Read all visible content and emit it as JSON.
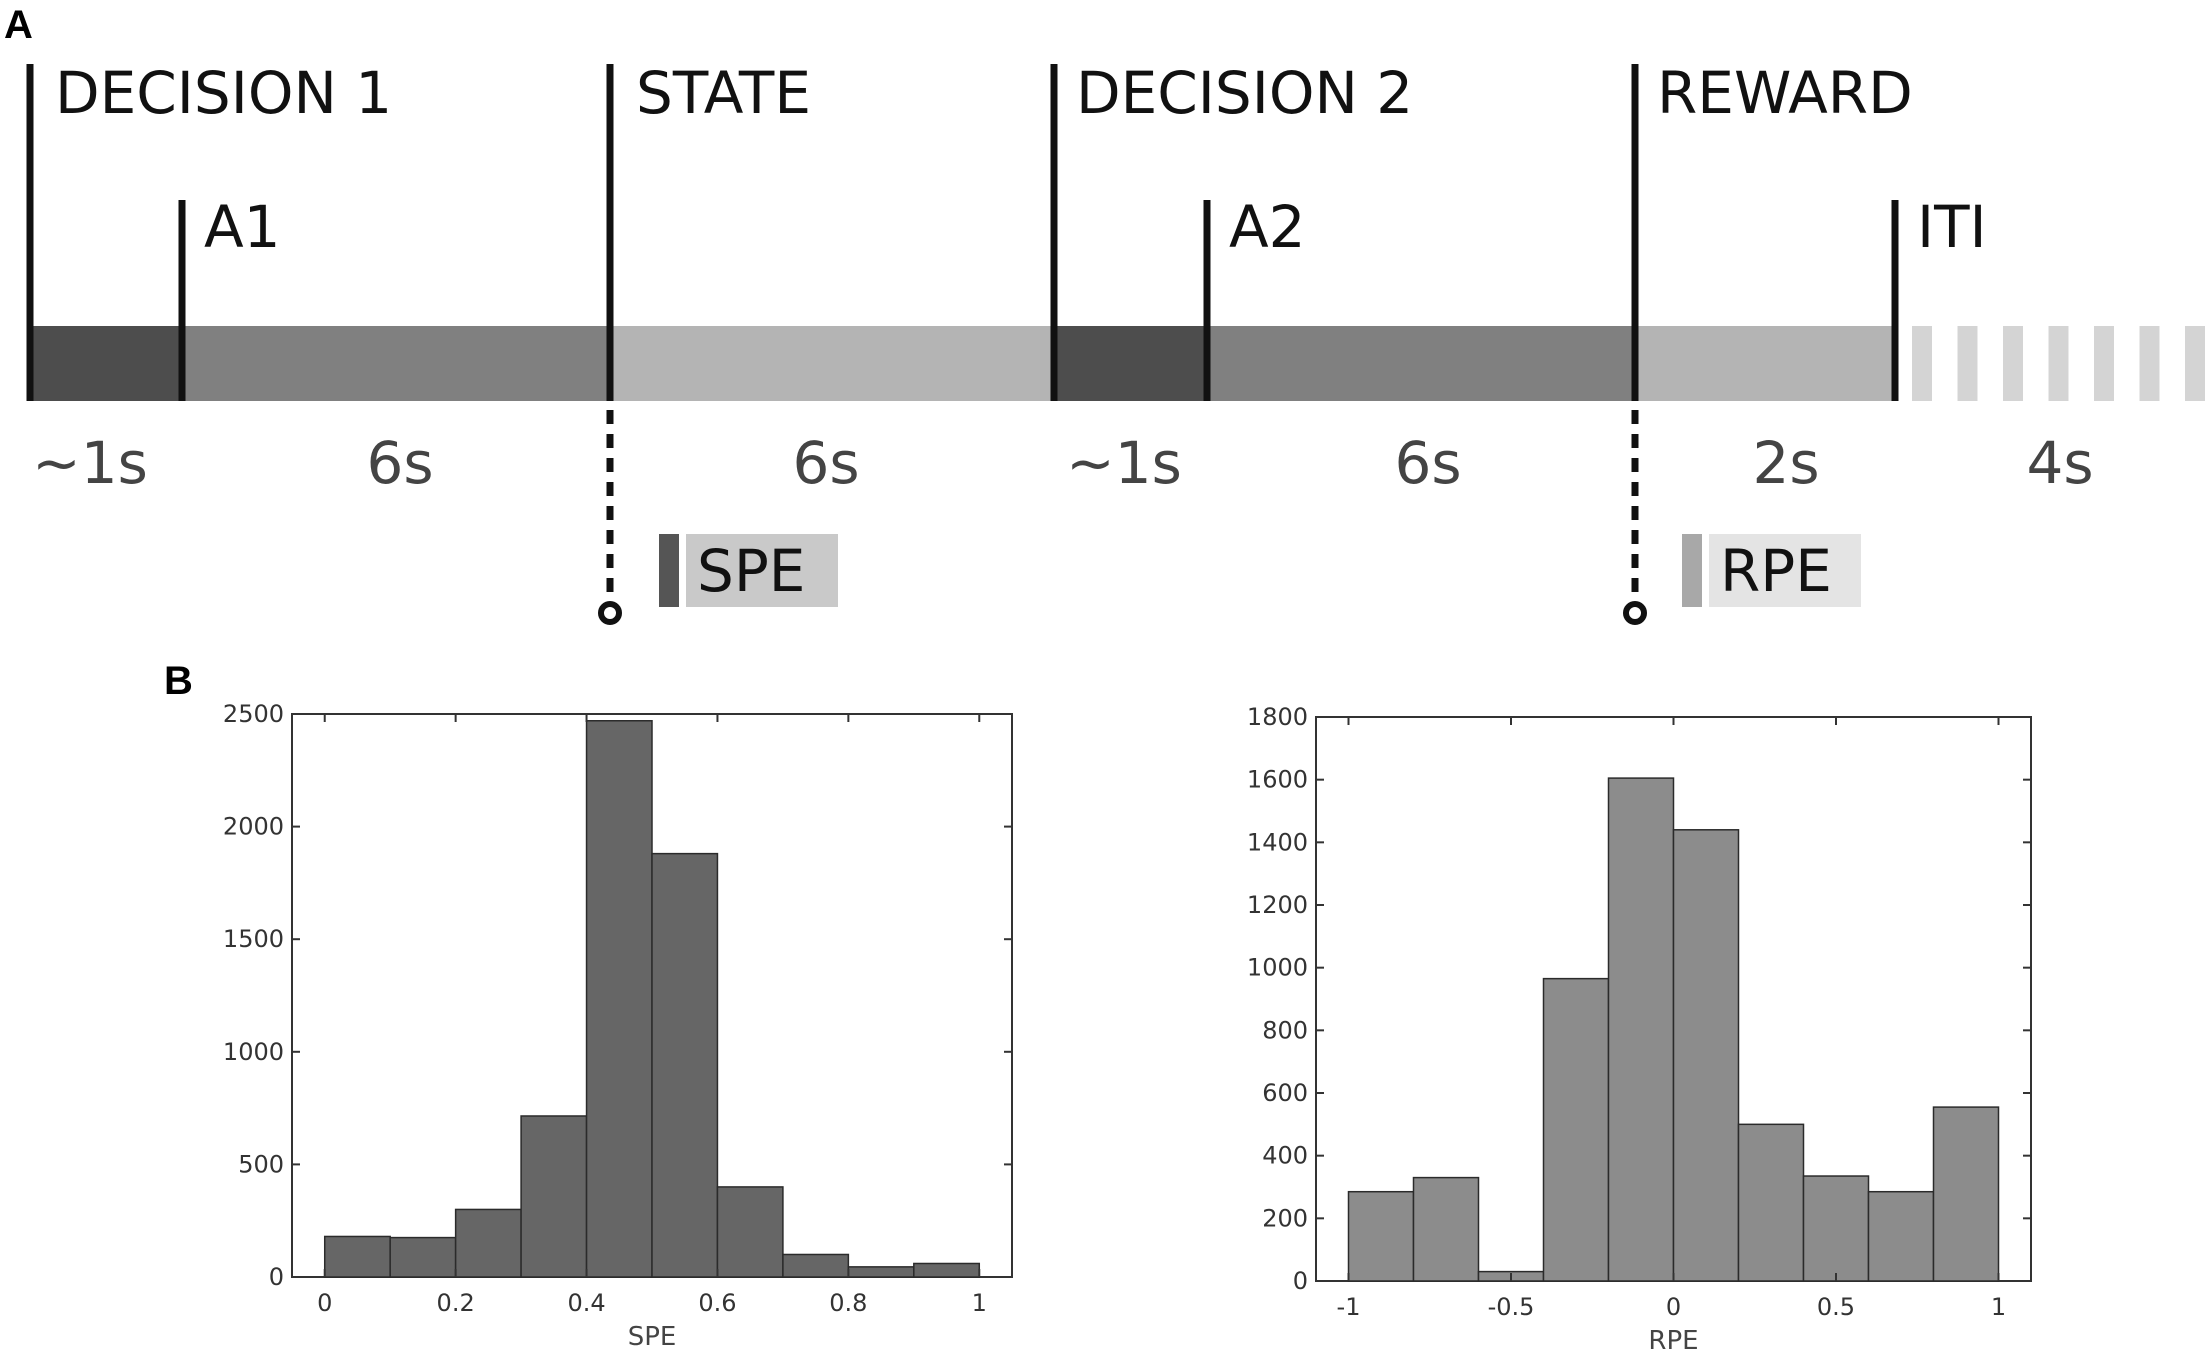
{
  "panel_a": {
    "letter": "A",
    "phases": [
      "DECISION 1",
      "A1",
      "STATE",
      "DECISION 2",
      "A2",
      "REWARD",
      "ITI"
    ],
    "durations": [
      "~1s",
      "6s",
      "6s",
      "~1s",
      "6s",
      "2s",
      "4s"
    ],
    "segment_colors": [
      "#4d4d4d",
      "#808080",
      "#b4b4b4",
      "#4d4d4d",
      "#808080",
      "#b4b4b4",
      "#d4d4d4"
    ],
    "pe_markers": [
      {
        "label": "SPE",
        "stripe_color": "#555555",
        "box_color": "#c9c9c9"
      },
      {
        "label": "RPE",
        "stripe_color": "#a8a8a8",
        "box_color": "#e4e4e4"
      }
    ]
  },
  "panel_b": {
    "letter": "B"
  },
  "chart_data": [
    {
      "type": "bar",
      "xlabel": "SPE",
      "ylabel": "",
      "bin_edges": [
        0,
        0.1,
        0.2,
        0.3,
        0.4,
        0.5,
        0.6,
        0.7,
        0.8,
        0.9,
        1.0
      ],
      "values": [
        180,
        175,
        300,
        715,
        2470,
        1880,
        400,
        100,
        45,
        60
      ],
      "xlim": [
        -0.05,
        1.05
      ],
      "ylim": [
        0,
        2500
      ],
      "xticks": [
        "0",
        "0.2",
        "0.4",
        "0.6",
        "0.8",
        "1"
      ],
      "yticks": [
        "0",
        "500",
        "1000",
        "1500",
        "2000",
        "2500"
      ],
      "bar_color": "#666666"
    },
    {
      "type": "bar",
      "xlabel": "RPE",
      "ylabel": "",
      "bin_edges": [
        -1,
        -0.8,
        -0.6,
        -0.4,
        -0.2,
        0,
        0.2,
        0.4,
        0.6,
        0.8,
        1.0
      ],
      "values": [
        285,
        330,
        30,
        965,
        1605,
        1440,
        500,
        335,
        285,
        555
      ],
      "xlim": [
        -1.1,
        1.1
      ],
      "ylim": [
        0,
        1800
      ],
      "xticks": [
        "-1",
        "-0.5",
        "0",
        "0.5",
        "1"
      ],
      "yticks": [
        "0",
        "200",
        "400",
        "600",
        "800",
        "1000",
        "1200",
        "1400",
        "1600",
        "1800"
      ],
      "bar_color": "#8c8c8c"
    }
  ]
}
